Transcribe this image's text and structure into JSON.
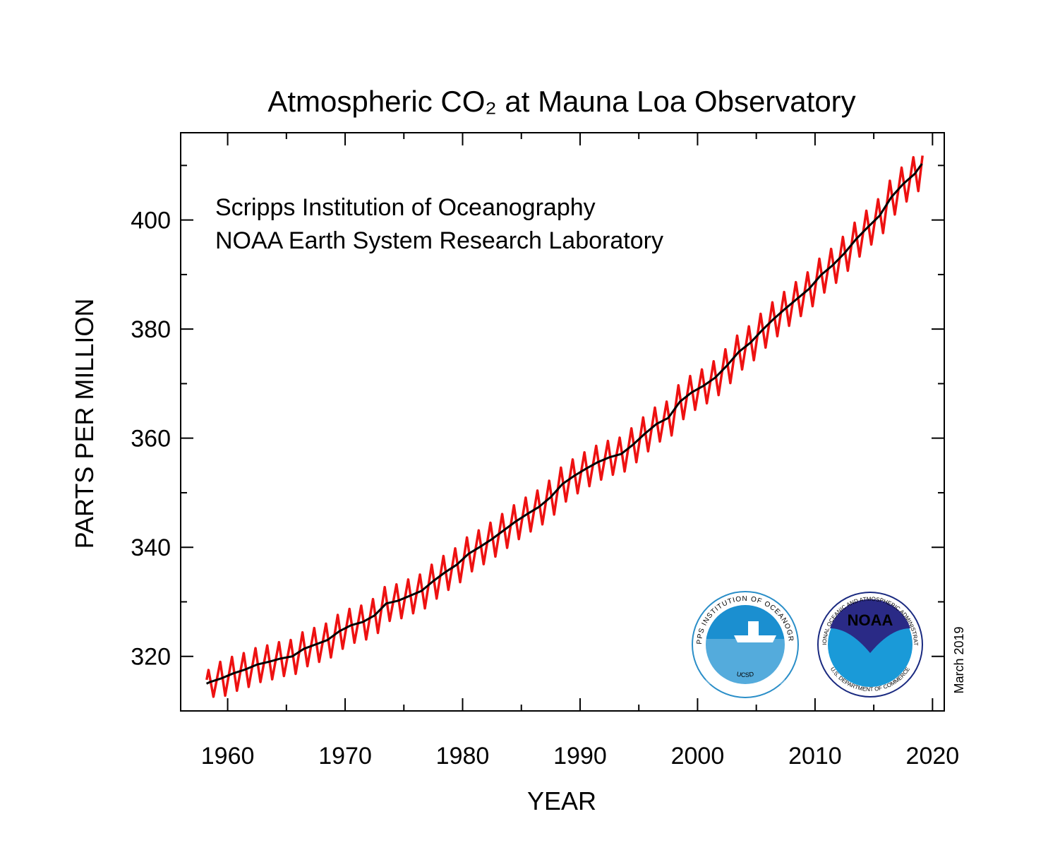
{
  "chart_data": {
    "type": "line",
    "title": "Atmospheric CO₂ at Mauna Loa Observatory",
    "subtitle_lines": [
      "Scripps Institution of Oceanography",
      "NOAA Earth System Research Laboratory"
    ],
    "x_label": "YEAR",
    "y_label": "PARTS PER MILLION",
    "annotations": {
      "date": "March 2019",
      "scripps_ring": "SCRIPPS INSTITUTION OF OCEANOGRAPHY",
      "scripps_base": "UCSD",
      "noaa_center": "NOAA",
      "noaa_ring": "NATIONAL OCEANIC AND ATMOSPHERIC ADMINISTRATION",
      "noaa_base": "U.S. DEPARTMENT OF COMMERCE"
    },
    "xlim": [
      1956,
      2021
    ],
    "ylim": [
      310,
      416
    ],
    "xticks": [
      1960,
      1970,
      1980,
      1990,
      2000,
      2010,
      2020
    ],
    "yticks": [
      320,
      340,
      360,
      380,
      400
    ],
    "x_minor_ticks": [
      1965,
      1975,
      1985,
      1995,
      2005,
      2015
    ],
    "y_minor_ticks": [
      310,
      330,
      350,
      370,
      390,
      410
    ],
    "series": [
      {
        "color": "#ee1111",
        "x": [
          1958.21,
          1958.37,
          1958.79,
          1959.37,
          1959.79,
          1960.37,
          1960.79,
          1961.37,
          1961.79,
          1962.37,
          1962.79,
          1963.37,
          1963.79,
          1964.37,
          1964.79,
          1965.37,
          1965.79,
          1966.37,
          1966.79,
          1967.37,
          1967.79,
          1968.37,
          1968.79,
          1969.37,
          1969.79,
          1970.37,
          1970.79,
          1971.37,
          1971.79,
          1972.37,
          1972.79,
          1973.37,
          1973.79,
          1974.37,
          1974.79,
          1975.37,
          1975.79,
          1976.37,
          1976.79,
          1977.37,
          1977.79,
          1978.37,
          1978.79,
          1979.37,
          1979.79,
          1980.37,
          1980.79,
          1981.37,
          1981.79,
          1982.37,
          1982.79,
          1983.37,
          1983.79,
          1984.37,
          1984.79,
          1985.37,
          1985.79,
          1986.37,
          1986.79,
          1987.37,
          1987.79,
          1988.37,
          1988.79,
          1989.37,
          1989.79,
          1990.37,
          1990.79,
          1991.37,
          1991.79,
          1992.37,
          1992.79,
          1993.37,
          1993.79,
          1994.37,
          1994.79,
          1995.37,
          1995.79,
          1996.37,
          1996.79,
          1997.37,
          1997.79,
          1998.37,
          1998.79,
          1999.37,
          1999.79,
          2000.37,
          2000.79,
          2001.37,
          2001.79,
          2002.37,
          2002.79,
          2003.37,
          2003.79,
          2004.37,
          2004.79,
          2005.37,
          2005.79,
          2006.37,
          2006.79,
          2007.37,
          2007.79,
          2008.37,
          2008.79,
          2009.37,
          2009.79,
          2010.37,
          2010.79,
          2011.37,
          2011.79,
          2012.37,
          2012.79,
          2013.37,
          2013.79,
          2014.37,
          2014.79,
          2015.37,
          2015.79,
          2016.37,
          2016.79,
          2017.37,
          2017.79,
          2018.37,
          2018.79,
          2019.15
        ],
        "values": [
          315.7,
          317.5,
          312.6,
          319.0,
          312.8,
          319.9,
          313.7,
          320.6,
          314.4,
          321.5,
          315.3,
          322.0,
          315.8,
          322.6,
          316.4,
          323.0,
          316.8,
          324.4,
          318.2,
          325.2,
          319.0,
          326.0,
          319.8,
          327.6,
          321.4,
          328.7,
          322.5,
          329.3,
          323.1,
          330.5,
          324.3,
          332.7,
          326.5,
          333.2,
          327.0,
          334.1,
          327.9,
          335.0,
          328.8,
          336.8,
          330.6,
          338.4,
          332.2,
          339.8,
          333.6,
          341.8,
          335.6,
          343.1,
          336.9,
          344.5,
          338.3,
          346.1,
          339.9,
          347.7,
          341.5,
          349.1,
          342.9,
          350.4,
          344.2,
          352.2,
          346.0,
          354.6,
          348.4,
          356.1,
          349.9,
          357.4,
          351.2,
          358.6,
          352.4,
          359.5,
          353.3,
          360.1,
          353.9,
          361.8,
          355.6,
          363.8,
          357.6,
          365.6,
          359.4,
          366.7,
          360.5,
          369.7,
          363.5,
          371.4,
          365.2,
          372.6,
          366.4,
          374.1,
          367.9,
          376.3,
          370.1,
          378.8,
          372.6,
          380.5,
          374.3,
          382.8,
          376.6,
          384.9,
          378.7,
          386.8,
          380.6,
          388.6,
          382.4,
          390.4,
          384.2,
          392.9,
          386.7,
          394.7,
          388.5,
          396.9,
          390.7,
          399.5,
          393.3,
          401.7,
          395.5,
          403.8,
          397.6,
          407.2,
          401.0,
          409.6,
          403.4,
          411.5,
          405.3,
          411.8
        ]
      },
      {
        "color": "#000000",
        "x": [
          1958.2,
          1958.5,
          1959.5,
          1960.5,
          1961.5,
          1962.5,
          1963.5,
          1964.5,
          1965.5,
          1966.5,
          1967.5,
          1968.5,
          1969.5,
          1970.5,
          1971.5,
          1972.5,
          1973.5,
          1974.5,
          1975.5,
          1976.5,
          1977.5,
          1978.5,
          1979.5,
          1980.5,
          1981.5,
          1982.5,
          1983.5,
          1984.5,
          1985.5,
          1986.5,
          1987.5,
          1988.5,
          1989.5,
          1990.5,
          1991.5,
          1992.5,
          1993.5,
          1994.5,
          1995.5,
          1996.5,
          1997.5,
          1998.5,
          1999.5,
          2000.5,
          2001.5,
          2002.5,
          2003.5,
          2004.5,
          2005.5,
          2006.5,
          2007.5,
          2008.5,
          2009.5,
          2010.5,
          2011.5,
          2012.5,
          2013.5,
          2014.5,
          2015.5,
          2016.5,
          2017.5,
          2018.5,
          2019.1
        ],
        "values": [
          315.0,
          315.3,
          316.0,
          316.9,
          317.6,
          318.5,
          319.0,
          319.6,
          320.0,
          321.4,
          322.2,
          323.0,
          324.6,
          325.7,
          326.3,
          327.5,
          329.7,
          330.2,
          331.1,
          332.0,
          333.8,
          335.4,
          336.8,
          338.8,
          340.1,
          341.5,
          343.1,
          344.7,
          346.1,
          347.4,
          349.2,
          351.6,
          353.1,
          354.4,
          355.6,
          356.5,
          357.1,
          358.8,
          360.8,
          362.6,
          363.7,
          366.7,
          368.4,
          369.6,
          371.1,
          373.3,
          375.8,
          377.5,
          379.8,
          381.9,
          383.8,
          385.6,
          387.4,
          389.9,
          391.7,
          393.9,
          396.5,
          398.7,
          400.8,
          404.2,
          406.6,
          408.5,
          410.3
        ]
      }
    ]
  }
}
